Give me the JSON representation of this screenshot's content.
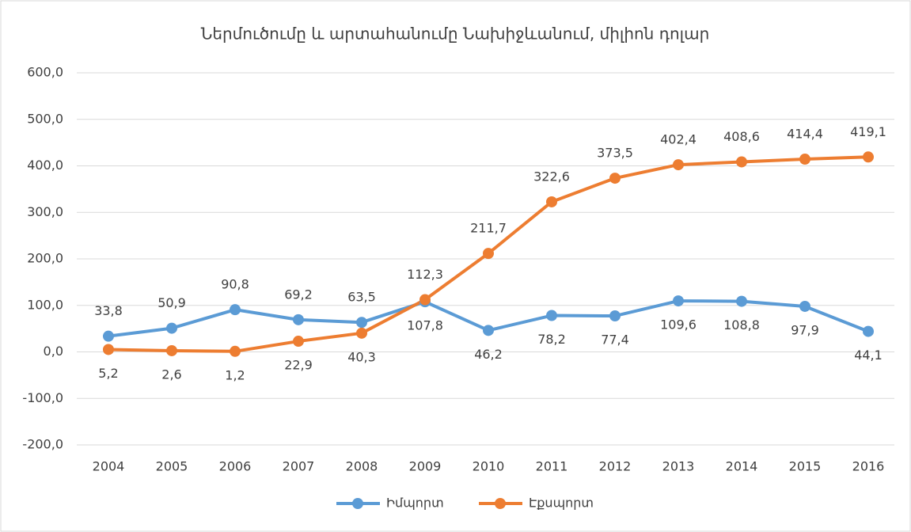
{
  "chart_data": {
    "type": "line",
    "title": "Ներմուծումը և արտահանումը Նախիջևանում, միլիոն դոլար",
    "categories": [
      "2004",
      "2005",
      "2006",
      "2007",
      "2008",
      "2009",
      "2010",
      "2011",
      "2012",
      "2013",
      "2014",
      "2015",
      "2016"
    ],
    "series": [
      {
        "name": "Իմպորտ",
        "color": "#5b9bd5",
        "values": [
          33.8,
          50.9,
          90.8,
          69.2,
          63.5,
          107.8,
          46.2,
          78.2,
          77.4,
          109.6,
          108.8,
          97.9,
          44.1
        ],
        "value_labels": [
          "33,8",
          "50,9",
          "90,8",
          "69,2",
          "63,5",
          "107,8",
          "46,2",
          "78,2",
          "77,4",
          "109,6",
          "108,8",
          "97,9",
          "44,1"
        ]
      },
      {
        "name": "Էքսպորտ",
        "color": "#ed7d31",
        "values": [
          5.2,
          2.6,
          1.2,
          22.9,
          40.3,
          112.3,
          211.7,
          322.6,
          373.5,
          402.4,
          408.6,
          414.4,
          419.1
        ],
        "value_labels": [
          "5,2",
          "2,6",
          "1,2",
          "22,9",
          "40,3",
          "112,3",
          "211,7",
          "322,6",
          "373,5",
          "402,4",
          "408,6",
          "414,4",
          "419,1"
        ]
      }
    ],
    "ylim": [
      -200,
      600
    ],
    "yticks": [
      {
        "value": -200,
        "label": "-200,0"
      },
      {
        "value": -100,
        "label": "-100,0"
      },
      {
        "value": 0,
        "label": "0,0"
      },
      {
        "value": 100,
        "label": "100,0"
      },
      {
        "value": 200,
        "label": "200,0"
      },
      {
        "value": 300,
        "label": "300,0"
      },
      {
        "value": 400,
        "label": "400,0"
      },
      {
        "value": 500,
        "label": "500,0"
      },
      {
        "value": 600,
        "label": "600,0"
      }
    ],
    "grid": true,
    "legend": "bottom"
  }
}
